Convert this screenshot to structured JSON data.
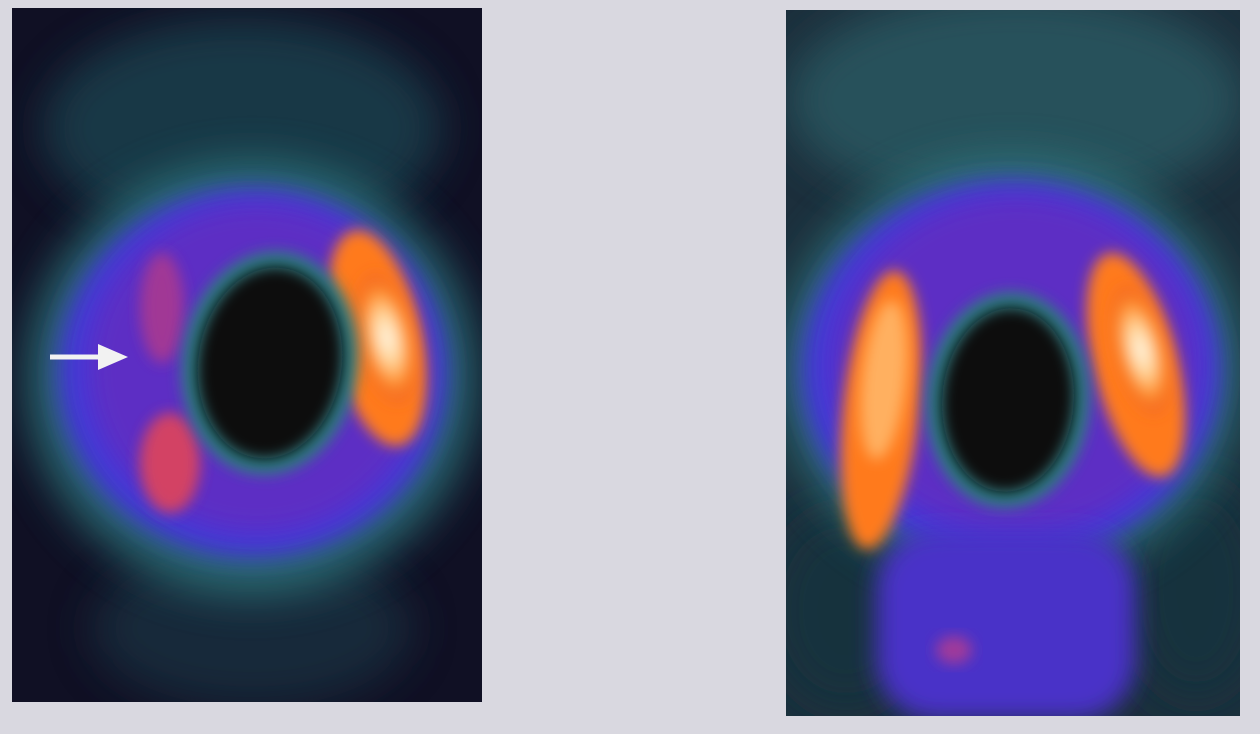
{
  "figure": {
    "panels": [
      {
        "id": "left",
        "description_tag": "spect-image-stress",
        "has_arrow": true
      },
      {
        "id": "right",
        "description_tag": "spect-image-rest",
        "has_arrow": false
      }
    ],
    "colors": {
      "background": "#d9d8e0",
      "dark": "#0f0f22",
      "teal": "#2f6b74",
      "blue": "#3b3ad0",
      "purple": "#5a2bc0",
      "orange": "#ff7a1e",
      "white_hot": "#fff6e8"
    }
  }
}
